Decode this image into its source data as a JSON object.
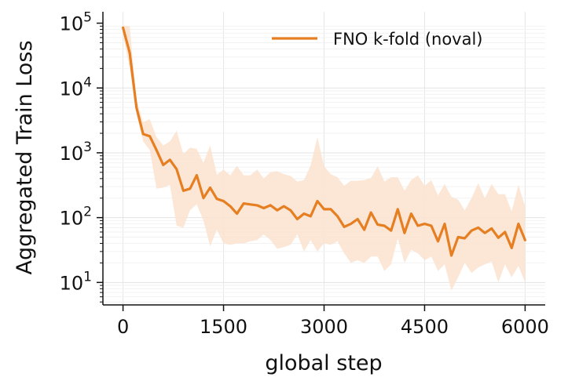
{
  "chart_data": {
    "type": "line",
    "title": "",
    "xlabel": "global step",
    "ylabel": "Aggregated Train Loss",
    "x_scale": "linear",
    "y_scale": "log",
    "xlim": [
      -300,
      6300
    ],
    "ylim": [
      4.5,
      150000
    ],
    "x_ticks": [
      0,
      1500,
      3000,
      4500,
      6000
    ],
    "x_tick_labels": [
      "0",
      "1500",
      "3000",
      "4500",
      "6000"
    ],
    "y_ticks": [
      10,
      100,
      1000,
      10000,
      100000
    ],
    "y_tick_labels": [
      {
        "base": "10",
        "exp": "1"
      },
      {
        "base": "10",
        "exp": "2"
      },
      {
        "base": "10",
        "exp": "3"
      },
      {
        "base": "10",
        "exp": "4"
      },
      {
        "base": "10",
        "exp": "5"
      }
    ],
    "grid": true,
    "legend_position": "top-right",
    "series": [
      {
        "name": "FNO k-fold (noval)",
        "color": "#e67e22",
        "band_color": "#fbe3d0",
        "x": [
          0,
          100,
          200,
          300,
          400,
          500,
          600,
          700,
          800,
          900,
          1000,
          1100,
          1200,
          1300,
          1400,
          1500,
          1600,
          1700,
          1800,
          1900,
          2000,
          2100,
          2200,
          2300,
          2400,
          2500,
          2600,
          2700,
          2800,
          2900,
          3000,
          3100,
          3200,
          3300,
          3400,
          3500,
          3600,
          3700,
          3800,
          3900,
          4000,
          4100,
          4200,
          4300,
          4400,
          4500,
          4600,
          4700,
          4800,
          4900,
          5000,
          5100,
          5200,
          5300,
          5400,
          5500,
          5600,
          5700,
          5800,
          5900,
          6000
        ],
        "y": [
          85000,
          35000,
          5000,
          1950,
          1800,
          1100,
          650,
          780,
          560,
          260,
          280,
          450,
          200,
          290,
          195,
          180,
          150,
          115,
          165,
          160,
          155,
          140,
          155,
          130,
          150,
          130,
          95,
          115,
          105,
          180,
          135,
          135,
          105,
          72,
          80,
          95,
          65,
          120,
          78,
          75,
          63,
          135,
          58,
          115,
          75,
          80,
          75,
          43,
          80,
          26,
          50,
          48,
          63,
          70,
          58,
          68,
          49,
          60,
          34,
          80,
          45
        ],
        "y_low": [
          65000,
          20000,
          4000,
          1500,
          1100,
          280,
          290,
          320,
          75,
          70,
          130,
          160,
          90,
          36,
          65,
          40,
          38,
          40,
          40,
          43,
          45,
          55,
          45,
          33,
          35,
          38,
          55,
          30,
          45,
          30,
          40,
          38,
          43,
          28,
          20,
          22,
          20,
          25,
          25,
          15,
          19,
          48,
          20,
          32,
          28,
          22,
          25,
          15,
          19,
          7.5,
          12,
          20,
          14,
          17,
          19,
          21,
          10,
          19,
          12,
          18,
          10
        ],
        "y_high": [
          92000,
          90000,
          6500,
          3000,
          3300,
          1750,
          1300,
          1500,
          2200,
          950,
          1200,
          1150,
          700,
          1300,
          460,
          550,
          450,
          630,
          450,
          450,
          550,
          400,
          500,
          520,
          470,
          440,
          360,
          380,
          640,
          1750,
          620,
          470,
          420,
          310,
          370,
          370,
          380,
          410,
          620,
          360,
          420,
          420,
          260,
          380,
          450,
          310,
          380,
          220,
          330,
          210,
          190,
          130,
          200,
          340,
          200,
          330,
          230,
          230,
          125,
          320,
          150
        ]
      }
    ]
  }
}
